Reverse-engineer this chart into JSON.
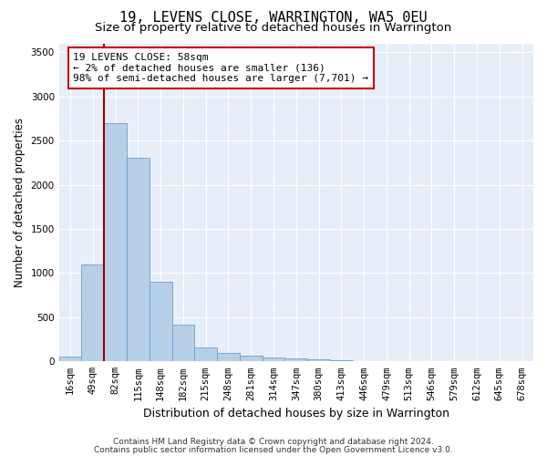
{
  "title": "19, LEVENS CLOSE, WARRINGTON, WA5 0EU",
  "subtitle": "Size of property relative to detached houses in Warrington",
  "xlabel": "Distribution of detached houses by size in Warrington",
  "ylabel": "Number of detached properties",
  "categories": [
    "16sqm",
    "49sqm",
    "82sqm",
    "115sqm",
    "148sqm",
    "182sqm",
    "215sqm",
    "248sqm",
    "281sqm",
    "314sqm",
    "347sqm",
    "380sqm",
    "413sqm",
    "446sqm",
    "479sqm",
    "513sqm",
    "546sqm",
    "579sqm",
    "612sqm",
    "645sqm",
    "678sqm"
  ],
  "values": [
    50,
    1100,
    2700,
    2300,
    900,
    420,
    160,
    100,
    60,
    40,
    30,
    20,
    10,
    5,
    3,
    2,
    1,
    1,
    0,
    0,
    0
  ],
  "bar_color": "#b8cfe8",
  "bar_edge_color": "#6a9fd0",
  "vline_color": "#990000",
  "annotation_text": "19 LEVENS CLOSE: 58sqm\n← 2% of detached houses are smaller (136)\n98% of semi-detached houses are larger (7,701) →",
  "annotation_box_color": "#ffffff",
  "annotation_box_edge": "#cc0000",
  "ylim": [
    0,
    3600
  ],
  "yticks": [
    0,
    500,
    1000,
    1500,
    2000,
    2500,
    3000,
    3500
  ],
  "plot_background": "#e8eef8",
  "footer1": "Contains HM Land Registry data © Crown copyright and database right 2024.",
  "footer2": "Contains public sector information licensed under the Open Government Licence v3.0.",
  "title_fontsize": 11,
  "subtitle_fontsize": 9.5,
  "xlabel_fontsize": 9,
  "ylabel_fontsize": 8.5,
  "tick_fontsize": 7.5,
  "footer_fontsize": 6.5,
  "annotation_fontsize": 8
}
